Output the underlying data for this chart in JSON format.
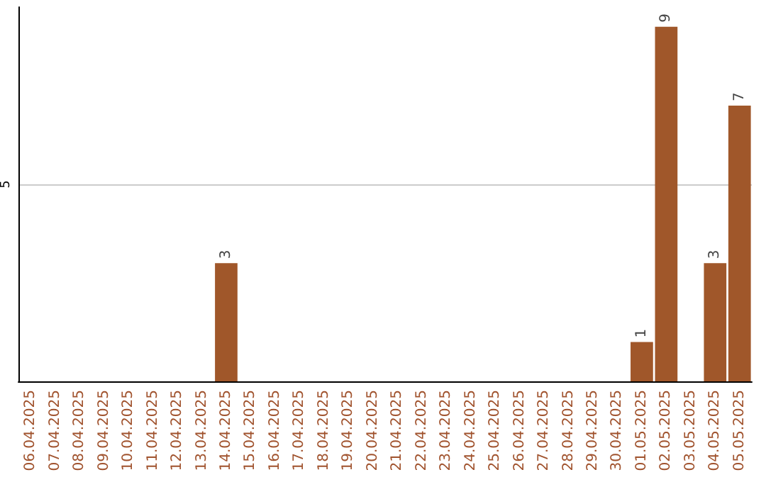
{
  "chart_data": {
    "type": "bar",
    "categories": [
      "06.04.2025",
      "07.04.2025",
      "08.04.2025",
      "09.04.2025",
      "10.04.2025",
      "11.04.2025",
      "12.04.2025",
      "13.04.2025",
      "14.04.2025",
      "15.04.2025",
      "16.04.2025",
      "17.04.2025",
      "18.04.2025",
      "19.04.2025",
      "20.04.2025",
      "21.04.2025",
      "22.04.2025",
      "23.04.2025",
      "24.04.2025",
      "25.04.2025",
      "26.04.2025",
      "27.04.2025",
      "28.04.2025",
      "29.04.2025",
      "30.04.2025",
      "01.05.2025",
      "02.05.2025",
      "03.05.2025",
      "04.05.2025",
      "05.05.2025"
    ],
    "values": [
      null,
      null,
      null,
      null,
      null,
      null,
      null,
      null,
      3,
      null,
      null,
      null,
      null,
      null,
      null,
      null,
      null,
      null,
      null,
      null,
      null,
      null,
      null,
      null,
      null,
      1,
      9,
      null,
      3,
      7
    ],
    "color": "#a0572a",
    "ylim": [
      0,
      9.5
    ],
    "yticks": [
      5
    ],
    "grid": "y",
    "data_labels": true
  }
}
